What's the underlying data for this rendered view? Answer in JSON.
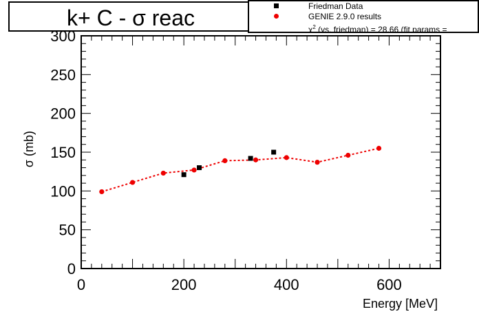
{
  "chart_data": {
    "type": "scatter",
    "title": "k+ C - σ reac",
    "xlabel": "Energy [MeV]",
    "ylabel": "σ (mb)",
    "xlim": [
      0,
      700
    ],
    "ylim": [
      0,
      300
    ],
    "x_ticks": [
      0,
      200,
      400,
      600
    ],
    "y_ticks": [
      0,
      50,
      100,
      150,
      200,
      250,
      300
    ],
    "x_tick_labels": [
      "0",
      "200",
      "400",
      "600"
    ],
    "y_tick_labels": [
      "0",
      "50",
      "100",
      "150",
      "200",
      "250",
      "300"
    ],
    "grid": false,
    "legend_position": "top-right",
    "series": [
      {
        "name": "Friedman Data",
        "marker": "square",
        "color": "#000000",
        "x": [
          200,
          230,
          330,
          375
        ],
        "y": [
          121,
          130,
          142,
          150
        ]
      },
      {
        "name": "GENIE 2.9.0  results",
        "marker": "circle",
        "color": "#ee0000",
        "line": "dotted",
        "x": [
          40,
          100,
          160,
          220,
          280,
          340,
          400,
          460,
          520,
          580
        ],
        "y": [
          99,
          111,
          123,
          127,
          139,
          140,
          143,
          137,
          146,
          155
        ]
      }
    ],
    "legend_note": {
      "chi": "χ",
      "sup": "2",
      "rest": " (vs. friedman) = 28.66 (fit params ="
    }
  }
}
